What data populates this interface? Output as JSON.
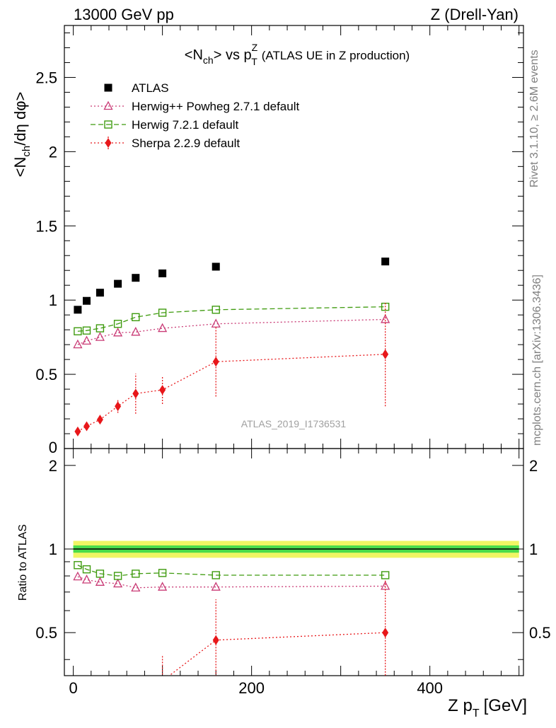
{
  "header": {
    "left": "13000 GeV pp",
    "right": "Z (Drell-Yan)"
  },
  "side_labels": {
    "rivet": "Rivet 3.1.10, ≥ 2.6M events",
    "mcplots": "mcplots.cern.ch [arXiv:1306.3436]"
  },
  "chart_data": {
    "type": "scatter",
    "title_main": "<N",
    "title_sub_ch": "ch",
    "title_mid": "> vs p",
    "title_sup": "Z",
    "title_sub_t": "T",
    "title_tail": "(ATLAS UE in Z production)",
    "watermark": "ATLAS_2019_I1736531",
    "ylabel": "<Nch/dη dφ>",
    "ylabel_parts": {
      "a": "<N",
      "b": "ch",
      "c": "/dη dφ>"
    },
    "ratio_ylabel": "Ratio to ATLAS",
    "xlabel": "Z p",
    "xlabel_sub": "T",
    "xlabel_unit": "[GeV]",
    "xlim": [
      -10,
      505
    ],
    "ylim": [
      0,
      2.85
    ],
    "ratio_ylim": [
      0.35,
      2.3
    ],
    "xticks": [
      0,
      200,
      400
    ],
    "yticks": [
      0.5,
      1,
      1.5,
      2,
      2.5
    ],
    "ytick_labels": [
      "0.5",
      "1",
      "1.5",
      "2",
      "2.5"
    ],
    "ratio_yticks": [
      0.5,
      1,
      2
    ],
    "ratio_ytick_labels": [
      "0.5",
      "1",
      "2"
    ],
    "x": [
      5,
      15,
      30,
      50,
      70,
      100,
      160,
      350
    ],
    "series": [
      {
        "name": "ATLAS",
        "marker": "square-filled",
        "color": "#000000",
        "values": [
          0.935,
          0.995,
          1.05,
          1.11,
          1.15,
          1.18,
          1.225,
          1.26
        ]
      },
      {
        "name": "Herwig++ Powheg 2.7.1 default",
        "marker": "triangle-open",
        "color": "#c93a75",
        "dash": "2,3",
        "values": [
          0.7,
          0.725,
          0.75,
          0.78,
          0.785,
          0.81,
          0.84,
          0.87
        ],
        "ratio": [
          0.795,
          0.775,
          0.76,
          0.75,
          0.725,
          0.73,
          0.73,
          0.735
        ]
      },
      {
        "name": "Herwig 7.2.1 default",
        "marker": "square-open",
        "color": "#3f9b0f",
        "dash": "7,4",
        "values": [
          0.79,
          0.795,
          0.81,
          0.84,
          0.885,
          0.915,
          0.935,
          0.955
        ],
        "ratio": [
          0.875,
          0.845,
          0.815,
          0.8,
          0.815,
          0.82,
          0.805,
          0.805
        ]
      },
      {
        "name": "Sherpa 2.2.9 default",
        "marker": "diamond-filled",
        "color": "#e8171a",
        "dash": "2,3",
        "values": [
          0.115,
          0.15,
          0.195,
          0.285,
          0.37,
          0.395,
          0.585,
          0.635
        ],
        "errors": [
          0.015,
          0.02,
          0.025,
          0.045,
          0.135,
          0.095,
          0.235,
          0.35
        ],
        "ratio": [
          null,
          null,
          null,
          null,
          null,
          0.335,
          0.47,
          0.5
        ]
      }
    ],
    "ratio_band": {
      "center": 1.0,
      "inner": 0.03,
      "outer": 0.07,
      "inner_color": "#4bdc4b",
      "outer_color": "#f0f564"
    },
    "legend_position": "top-left"
  }
}
